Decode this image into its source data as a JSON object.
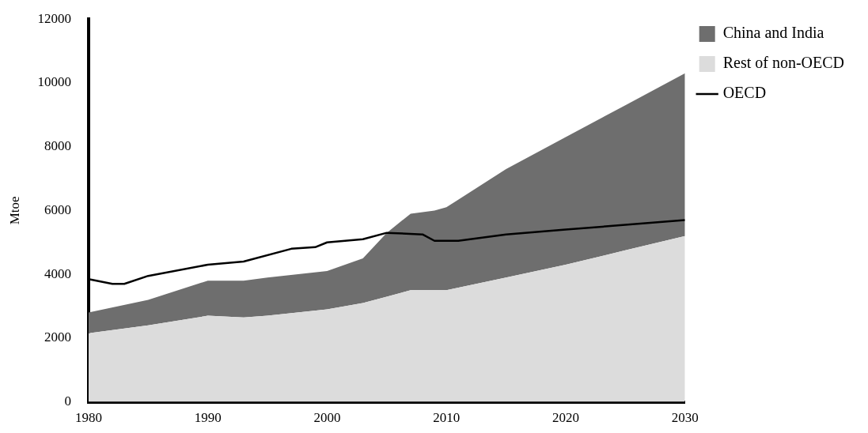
{
  "chart_data": {
    "type": "area",
    "stacked": true,
    "ylabel": "Mtoe",
    "x": [
      1980,
      1985,
      1990,
      1993,
      1995,
      2000,
      2003,
      2005,
      2007,
      2009,
      2010,
      2015,
      2020,
      2025,
      2030
    ],
    "series": [
      {
        "name": "OECD",
        "type": "line",
        "color": "#000000",
        "x": [
          1980,
          1982,
          1983,
          1985,
          1990,
          1993,
          1997,
          1999,
          2000,
          2003,
          2005,
          2008,
          2009,
          2011,
          2015,
          2020,
          2025,
          2030
        ],
        "values": [
          3850,
          3700,
          3700,
          3950,
          4300,
          4400,
          4800,
          4850,
          5000,
          5100,
          5300,
          5250,
          5050,
          5050,
          5250,
          5400,
          5550,
          5700
        ]
      },
      {
        "name": "Rest of non-OECD",
        "color": "#dcdcdc",
        "values": [
          2150,
          2400,
          2700,
          2650,
          2700,
          2900,
          3100,
          3300,
          3500,
          3500,
          3500,
          3900,
          4300,
          4750,
          5200
        ]
      },
      {
        "name": "China and India",
        "color": "#6e6e6e",
        "values": [
          650,
          800,
          1100,
          1150,
          1200,
          1200,
          1400,
          2000,
          2400,
          2500,
          2600,
          3400,
          4000,
          4550,
          5100
        ]
      }
    ],
    "xlim": [
      1980,
      2030
    ],
    "xticks": [
      1980,
      1990,
      2000,
      2010,
      2020,
      2030
    ],
    "ylim": [
      0,
      12000
    ],
    "yticks": [
      0,
      2000,
      4000,
      6000,
      8000,
      10000,
      12000
    ],
    "grid": false,
    "legend": "right",
    "marker": "none",
    "line_style": "solid"
  }
}
